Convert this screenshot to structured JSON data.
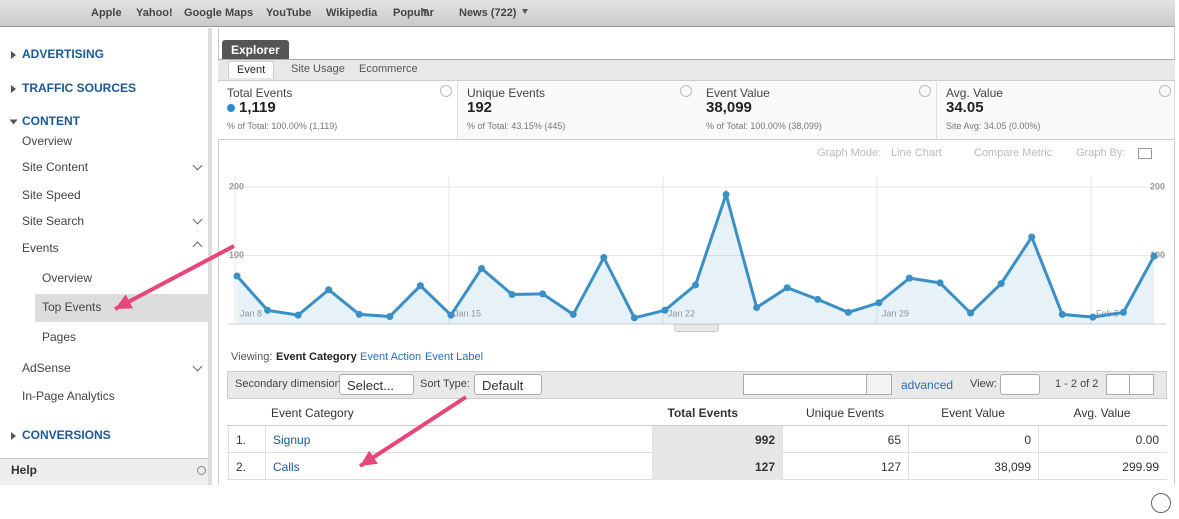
{
  "browser_bar": {
    "bookmarks": [
      "Apple",
      "Yahoo!",
      "Google Maps",
      "YouTube",
      "Wikipedia",
      "Popular",
      "News (722)"
    ]
  },
  "sidebar": {
    "sections": [
      "ADVERTISING",
      "TRAFFIC SOURCES",
      "CONTENT",
      "CONVERSIONS"
    ],
    "content_items": [
      "Overview",
      "Site Content",
      "Site Speed",
      "Site Search",
      "Events",
      "AdSense",
      "In-Page Analytics"
    ],
    "events_items": [
      "Overview",
      "Top Events",
      "Pages"
    ],
    "help": "Help"
  },
  "explorer": {
    "tab": "Explorer",
    "subtabs": [
      "Event",
      "Site Usage",
      "Ecommerce"
    ]
  },
  "metrics": [
    {
      "label": "Total Events",
      "value": "1,119",
      "note": "% of Total: 100.00% (1,119)"
    },
    {
      "label": "Unique Events",
      "value": "192",
      "note": "% of Total: 43.15% (445)"
    },
    {
      "label": "Event Value",
      "value": "38,099",
      "note": "% of Total: 100.00% (38,099)"
    },
    {
      "label": "Avg. Value",
      "value": "34.05",
      "note": "Site Avg: 34.05 (0.00%)"
    }
  ],
  "graph_options": [
    "Graph Mode:",
    "Line Chart",
    "Compare Metric",
    "Graph By:"
  ],
  "chart_data": {
    "type": "line",
    "color": "#3a8fc7",
    "categories": [
      "Jan 8",
      null,
      null,
      null,
      null,
      null,
      null,
      "Jan 15",
      null,
      null,
      null,
      null,
      null,
      null,
      "Jan 22",
      null,
      null,
      null,
      null,
      null,
      null,
      "Jan 29",
      null,
      null,
      null,
      null,
      null,
      null,
      "Feb 5",
      null,
      null
    ],
    "values": [
      70,
      20,
      13,
      50,
      14,
      11,
      56,
      13,
      81,
      43,
      44,
      14,
      97,
      9,
      20,
      57,
      189,
      24,
      53,
      36,
      17,
      31,
      67,
      60,
      16,
      59,
      127,
      14,
      10,
      17,
      99
    ],
    "ylim": [
      0,
      220
    ],
    "yticks": [
      100,
      200
    ],
    "grid": true
  },
  "viewing": {
    "label": "Viewing:",
    "options": [
      "Event Category",
      "Event Action",
      "Event Label"
    ]
  },
  "toolbar": {
    "secondary_label": "Secondary dimension:",
    "secondary_value": "Select...",
    "sort_label": "Sort Type:",
    "sort_value": "Default",
    "advanced": "advanced",
    "view_label": "View:",
    "pagination": "1 - 2 of 2"
  },
  "table": {
    "headers": [
      "Event Category",
      "Total Events",
      "Unique Events",
      "Event Value",
      "Avg. Value"
    ],
    "rows": [
      [
        "1.",
        "Signup",
        "992",
        "65",
        "0",
        "0.00"
      ],
      [
        "2.",
        "Calls",
        "127",
        "127",
        "38,099",
        "299.99"
      ]
    ]
  }
}
